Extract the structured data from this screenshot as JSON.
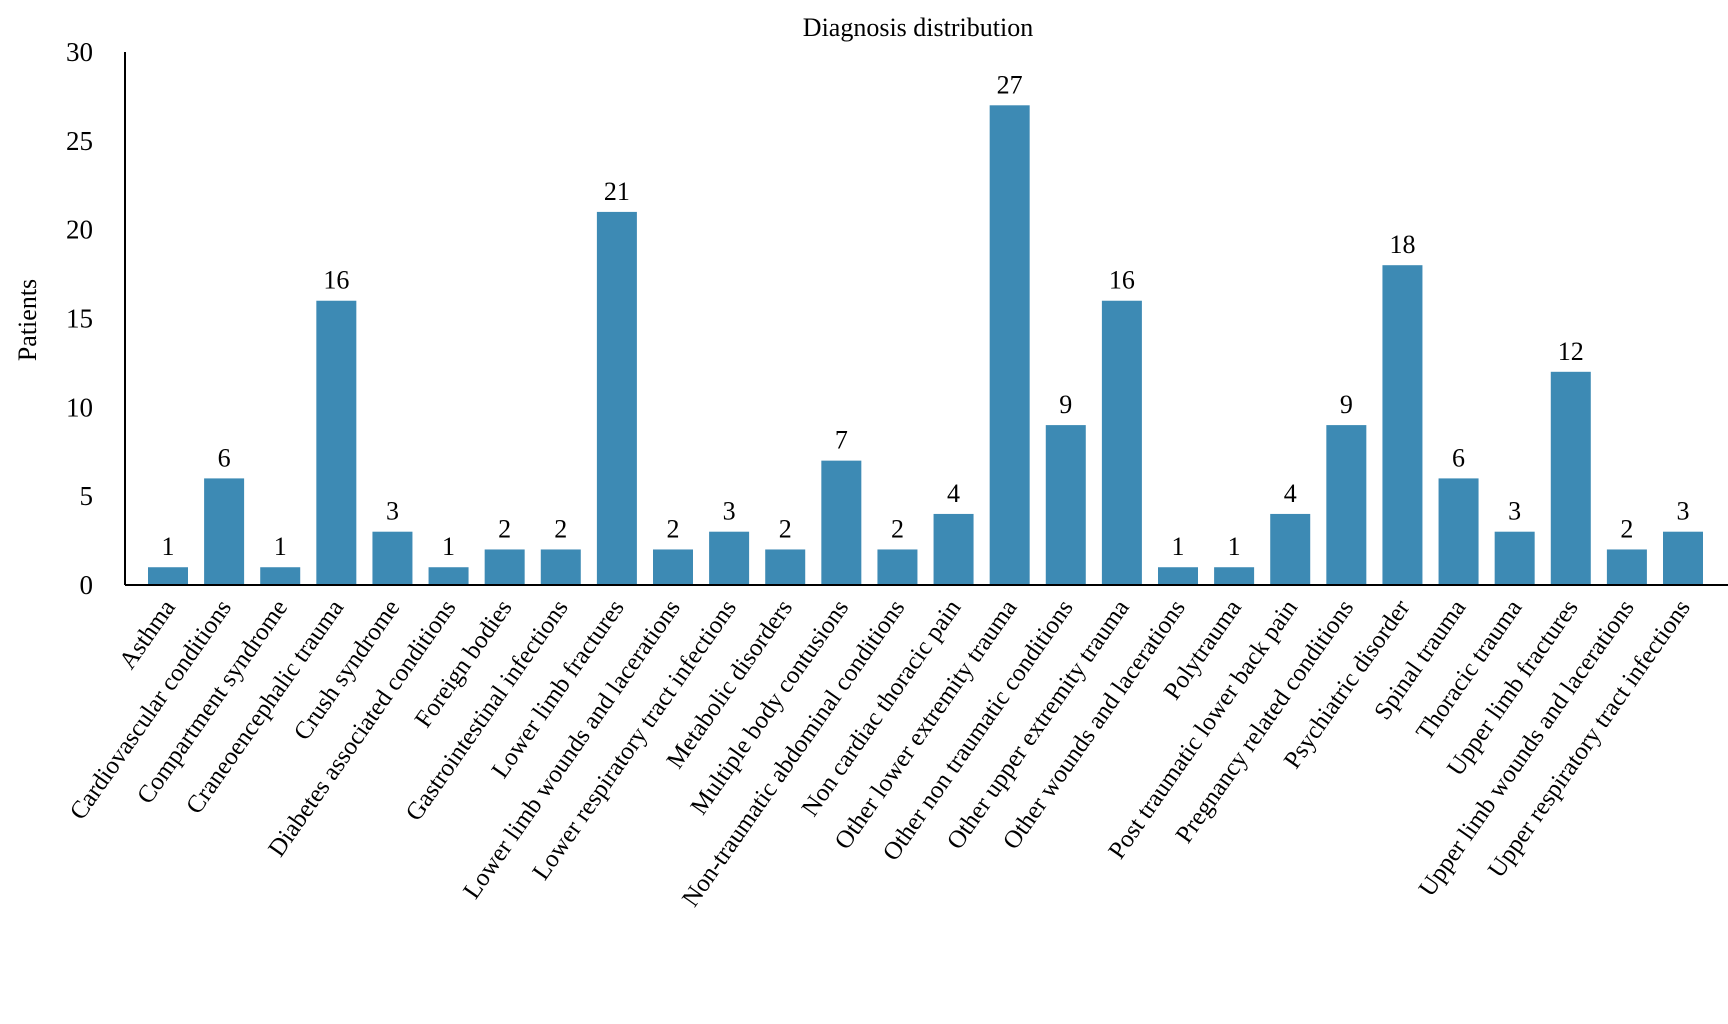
{
  "chart_data": {
    "type": "bar",
    "title": "Diagnosis distribution",
    "xlabel": "",
    "ylabel": "Patients",
    "ylim": [
      0,
      30
    ],
    "yticks": [
      0,
      5,
      10,
      15,
      20,
      25,
      30
    ],
    "grid": false,
    "legend": "none",
    "bar_color": "#3d8ab4",
    "categories": [
      "Asthma",
      "Cardiovascular conditions",
      "Compartment syndrome",
      "Craneoencephalic trauma",
      "Crush syndrome",
      "Diabetes associated conditions",
      "Foreign bodies",
      "Gastrointestinal infections",
      "Lower limb fractures",
      "Lower limb wounds and lacerations",
      "Lower respiratory tract infections",
      "Metabolic disorders",
      "Multiple body contusions",
      "Non-traumatic abdominal conditions",
      "Non cardiac thoracic pain",
      "Other lower extremity trauma",
      "Other non traumatic conditions",
      "Other upper extremity trauma",
      "Other wounds and lacerations",
      "Polytrauma",
      "Post traumatic lower back pain",
      "Pregnancy related conditions",
      "Psychiatric disorder",
      "Spinal trauma",
      "Thoracic trauma",
      "Upper limb fractures",
      "Upper limb wounds and lacerations",
      "Upper respiratory tract infections"
    ],
    "values": [
      1,
      6,
      1,
      16,
      3,
      1,
      2,
      2,
      21,
      2,
      3,
      2,
      7,
      2,
      4,
      27,
      9,
      16,
      1,
      1,
      4,
      9,
      18,
      6,
      3,
      12,
      2,
      3
    ]
  }
}
